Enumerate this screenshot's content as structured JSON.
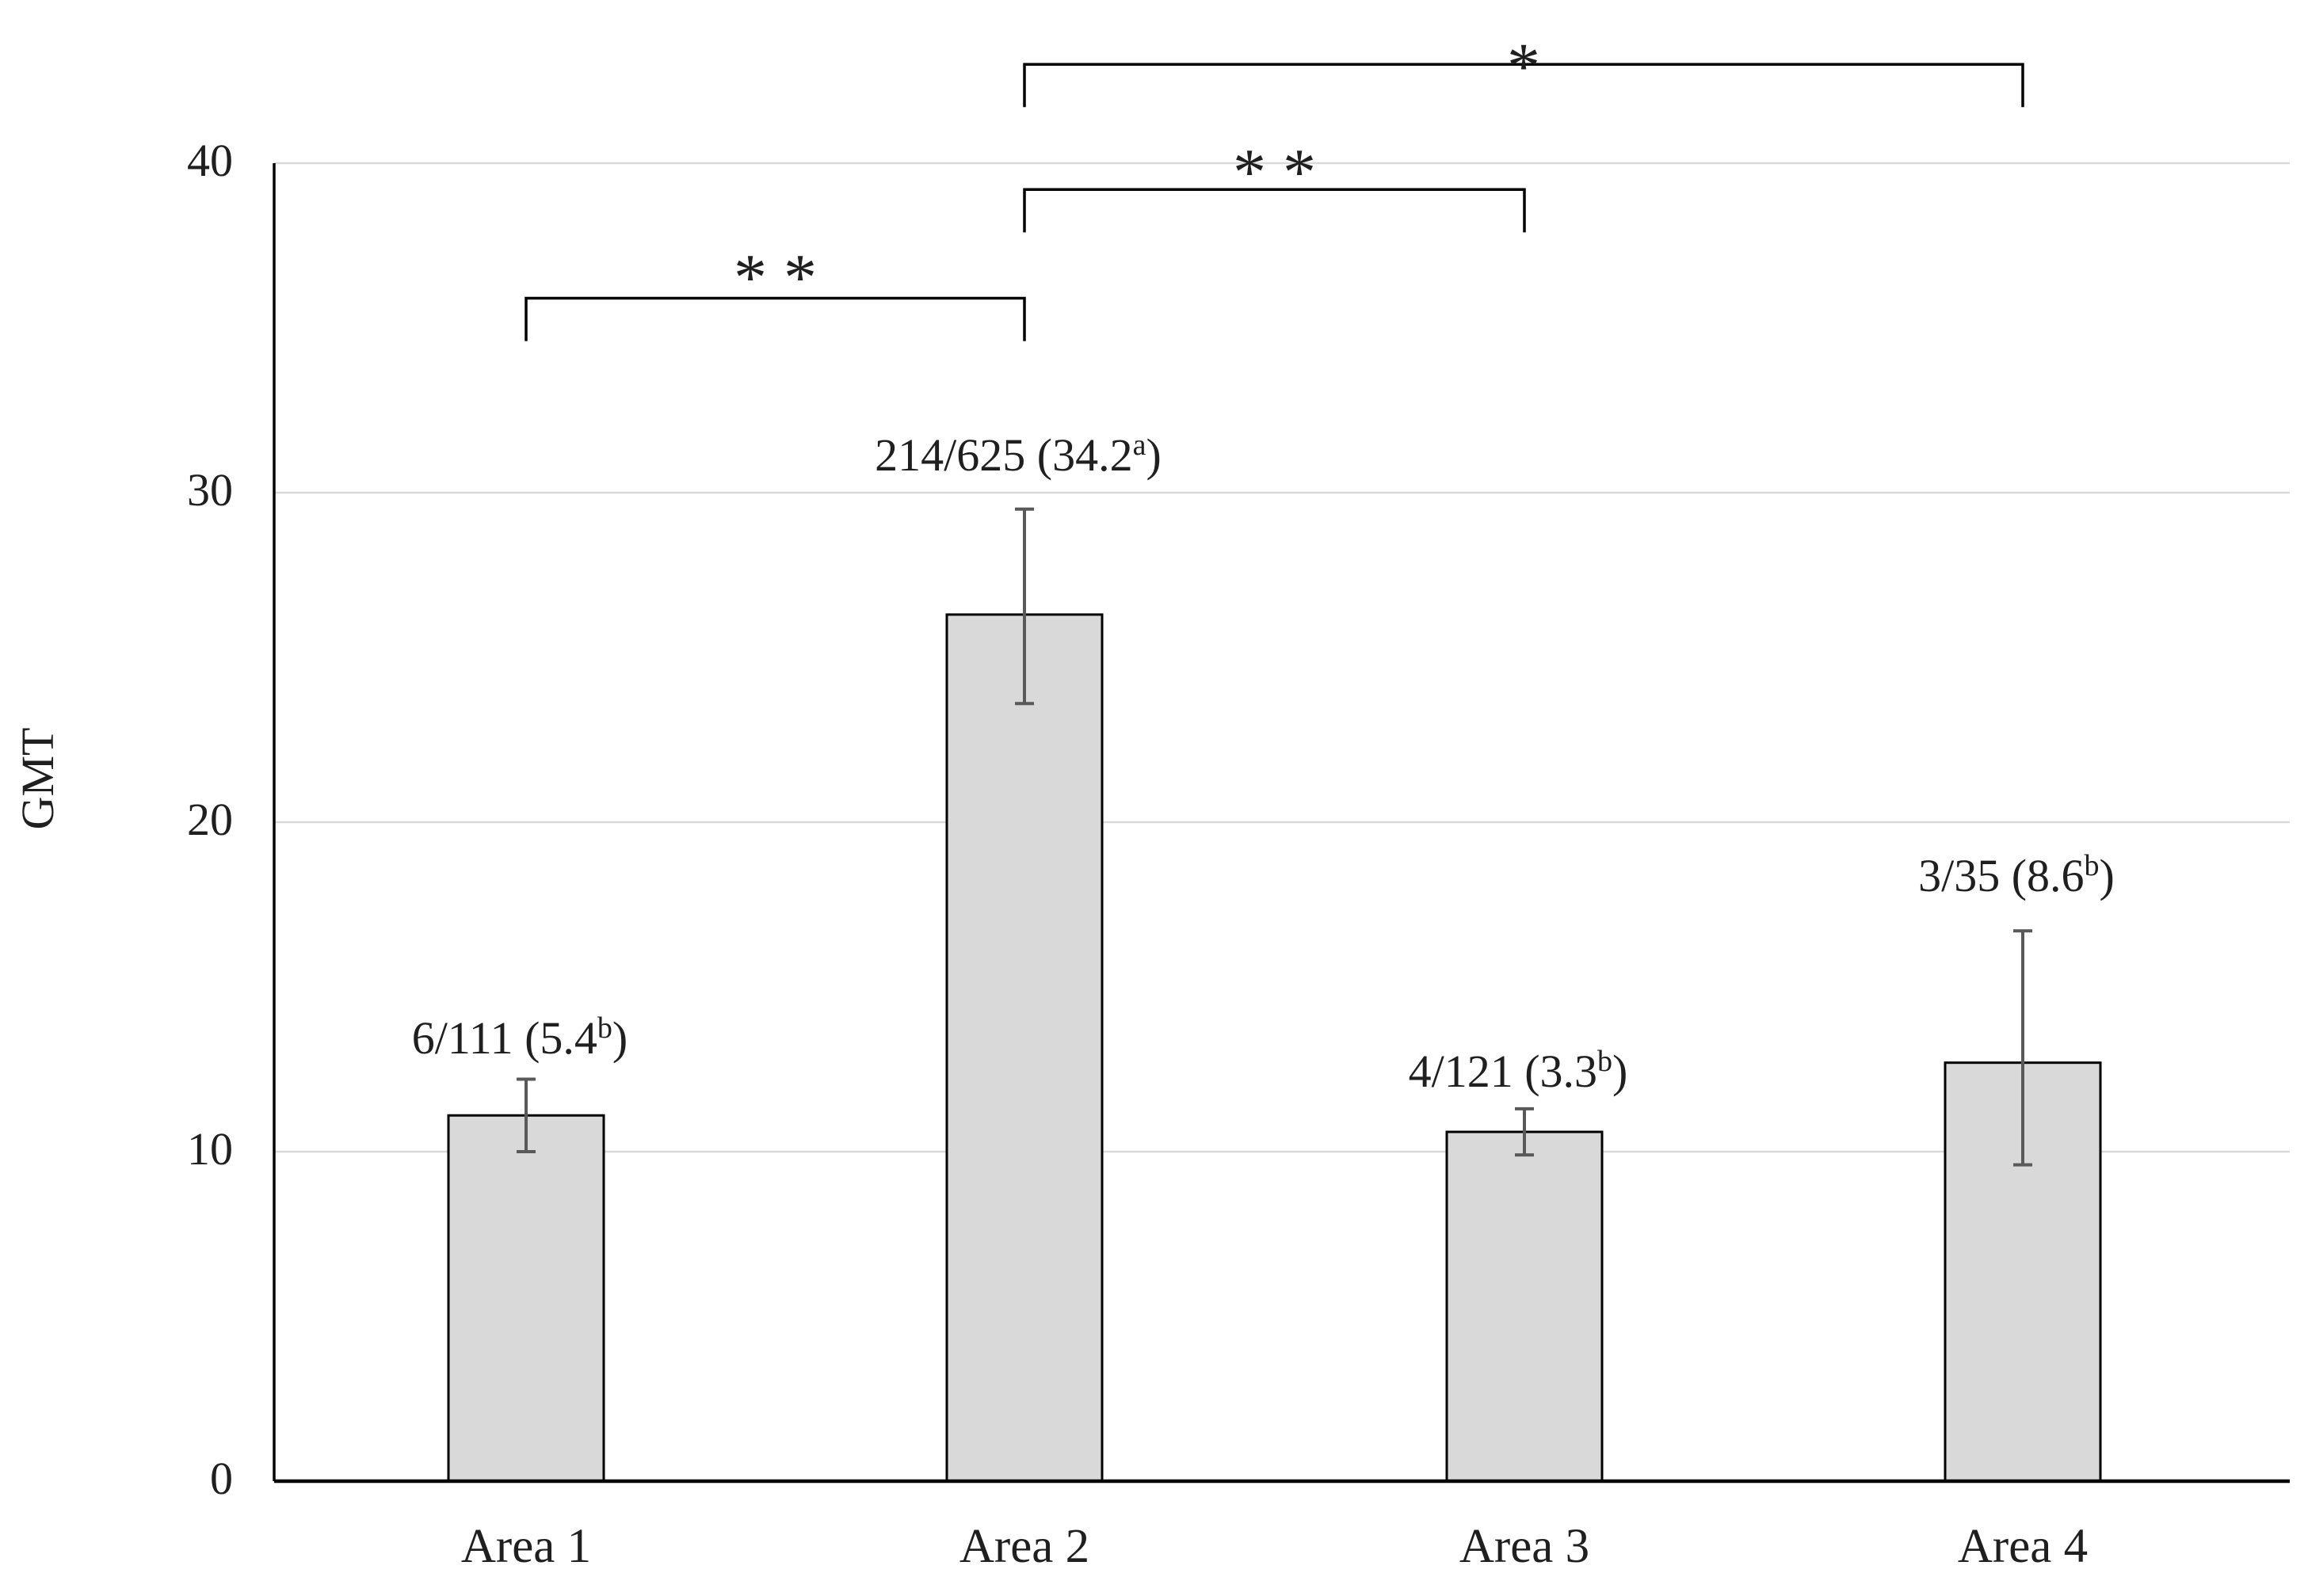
{
  "chart_data": {
    "type": "bar",
    "title": "",
    "xlabel": "",
    "ylabel": "GMT",
    "categories": [
      "Area 1",
      "Area 2",
      "Area 3",
      "Area 4"
    ],
    "values": [
      11.1,
      26.3,
      10.6,
      12.7
    ],
    "error_bars": {
      "low": [
        10.0,
        23.6,
        9.9,
        9.6
      ],
      "high": [
        12.2,
        29.5,
        11.3,
        16.7
      ]
    },
    "bar_labels": [
      {
        "text": "6/111 (5.4",
        "sup": "b",
        "close": ")"
      },
      {
        "text": "214/625 (34.2",
        "sup": "a",
        "close": ")"
      },
      {
        "text": "4/121 (3.3",
        "sup": "b",
        "close": ")"
      },
      {
        "text": "3/35 (8.6",
        "sup": "b",
        "close": ")"
      }
    ],
    "ylim": [
      0,
      40
    ],
    "yticks": [
      0,
      10,
      20,
      30,
      40
    ],
    "grid": true,
    "legend": "none",
    "significance_brackets": [
      {
        "from": 0,
        "to": 1,
        "label": "* *",
        "bar_y": 35.9,
        "tick_to": 34.6,
        "label_y": 36.9
      },
      {
        "from": 1,
        "to": 2,
        "label": "* *",
        "bar_y": 39.2,
        "tick_to": 37.9,
        "label_y": 40.1
      },
      {
        "from": 1,
        "to": 3,
        "label": "*",
        "bar_y": 43.0,
        "tick_to": 41.7,
        "label_y": 43.3
      }
    ],
    "colors": {
      "bar_fill": "#d9d9d9",
      "bar_stroke": "#000000",
      "error_bar": "#595959",
      "gridline": "#d9d9d9",
      "axis": "#000000",
      "text": "#1f1f1f"
    }
  }
}
